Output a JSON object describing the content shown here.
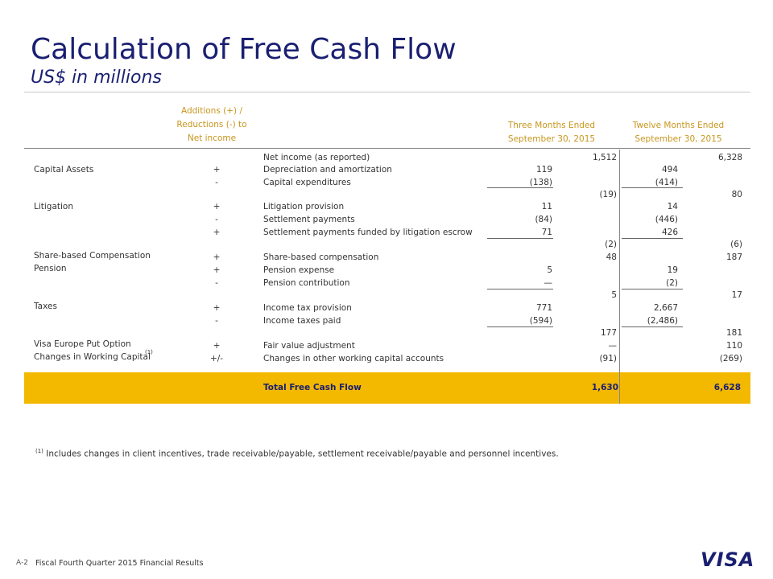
{
  "header": {
    "title": "Calculation of Free Cash Flow",
    "subtitle": "US$ in millions"
  },
  "columns": {
    "additions_line1": "Additions (+) /",
    "additions_line2": "Reductions (-) to",
    "additions_line3": "Net income",
    "three_months_line1": "Three Months Ended",
    "three_months_line2": "September 30, 2015",
    "twelve_months_line1": "Twelve Months Ended",
    "twelve_months_line2": "September 30, 2015"
  },
  "rows": [
    {
      "category": "",
      "sign": "",
      "item": "Net income (as reported)",
      "q_detail": "",
      "q_total": "1,512",
      "y_detail": "",
      "y_total": "6,328"
    },
    {
      "category": "Capital Assets",
      "sign": "+",
      "item": "Depreciation and amortization",
      "q_detail": "119",
      "q_total": "",
      "y_detail": "494",
      "y_total": ""
    },
    {
      "category": "",
      "sign": "-",
      "item": "Capital expenditures",
      "q_detail": "(138)",
      "q_total": "",
      "y_detail": "(414)",
      "y_total": ""
    },
    {
      "category": "",
      "sign": "",
      "item": "",
      "q_detail": "",
      "q_total": "(19)",
      "y_detail": "",
      "y_total": "80"
    },
    {
      "category": "Litigation",
      "sign": "+",
      "item": "Litigation provision",
      "q_detail": "11",
      "q_total": "",
      "y_detail": "14",
      "y_total": ""
    },
    {
      "category": "",
      "sign": "-",
      "item": "Settlement payments",
      "q_detail": "(84)",
      "q_total": "",
      "y_detail": "(446)",
      "y_total": ""
    },
    {
      "category": "",
      "sign": "+",
      "item": "Settlement payments funded by litigation escrow",
      "q_detail": "71",
      "q_total": "",
      "y_detail": "426",
      "y_total": ""
    },
    {
      "category": "",
      "sign": "",
      "item": "",
      "q_detail": "",
      "q_total": "(2)",
      "y_detail": "",
      "y_total": "(6)"
    },
    {
      "category": "Share-based Compensation",
      "sign": "+",
      "item": "Share-based compensation",
      "q_detail": "",
      "q_total": "48",
      "y_detail": "",
      "y_total": "187"
    },
    {
      "category": "Pension",
      "sign": "+",
      "item": "Pension expense",
      "q_detail": "5",
      "q_total": "",
      "y_detail": "19",
      "y_total": ""
    },
    {
      "category": "",
      "sign": "-",
      "item": "Pension contribution",
      "q_detail": "—",
      "q_total": "",
      "y_detail": "(2)",
      "y_total": ""
    },
    {
      "category": "",
      "sign": "",
      "item": "",
      "q_detail": "",
      "q_total": "5",
      "y_detail": "",
      "y_total": "17"
    },
    {
      "category": "Taxes",
      "sign": "+",
      "item": "Income tax provision",
      "q_detail": "771",
      "q_total": "",
      "y_detail": "2,667",
      "y_total": ""
    },
    {
      "category": "",
      "sign": "-",
      "item": "Income taxes paid",
      "q_detail": "(594)",
      "q_total": "",
      "y_detail": "(2,486)",
      "y_total": ""
    },
    {
      "category": "",
      "sign": "",
      "item": "",
      "q_detail": "",
      "q_total": "177",
      "y_detail": "",
      "y_total": "181"
    },
    {
      "category": "Visa Europe Put Option",
      "sign": "+",
      "item": "Fair value adjustment",
      "q_detail": "",
      "q_total": "—",
      "y_detail": "",
      "y_total": "110"
    },
    {
      "category": "Changes in Working Capital",
      "sign": "+/-",
      "item": "Changes in other working capital accounts",
      "q_detail": "",
      "q_total": "(91)",
      "y_detail": "",
      "y_total": "(269)"
    }
  ],
  "working_capital_sup": "(1)",
  "total": {
    "label": "Total Free Cash Flow",
    "q_total": "1,630",
    "y_total": "6,628"
  },
  "footnote": {
    "marker": "(1)",
    "text": "Includes changes in client incentives, trade receivable/payable, settlement receivable/payable and personnel incentives."
  },
  "footer": {
    "page": "A-2",
    "text": "Fiscal Fourth Quarter 2015 Financial Results",
    "logo": "VISA"
  }
}
